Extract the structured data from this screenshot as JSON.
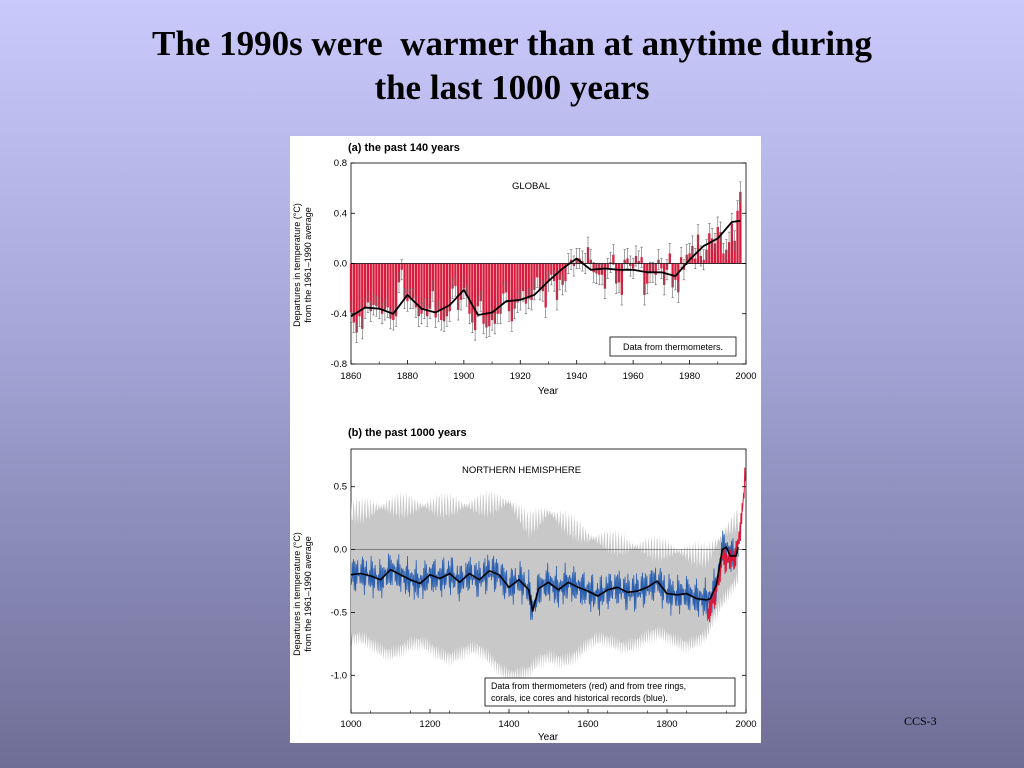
{
  "slide": {
    "title_line1": "The 1990s were  warmer than at anytime during",
    "title_line2": "the last 1000 years",
    "footer": "CCS-3",
    "background_top": "#c9c9fb",
    "background_bottom": "#6e6e96"
  },
  "chart_data": [
    {
      "type": "bar",
      "title": "(a) the past 140 years",
      "region_label": "GLOBAL",
      "xlabel": "Year",
      "ylabel": "Departures in temperature (°C) from the 1961–1990 average",
      "ylabel_lines": [
        "Departures in temperature (°C)",
        "from the 1961–1990 average"
      ],
      "xlim": [
        1860,
        2000
      ],
      "ylim": [
        -0.8,
        0.8
      ],
      "x_ticks": [
        1860,
        1880,
        1900,
        1920,
        1940,
        1960,
        1980,
        2000
      ],
      "y_ticks": [
        0.8,
        0.4,
        0.0,
        -0.4,
        -0.8
      ],
      "y_tick_labels": [
        "0.8",
        "0.4",
        "0.0",
        "-0.4",
        "-0.8"
      ],
      "legend_text": "Data from thermometers.",
      "legend_position": "bottom-right",
      "bar_color": "#d81b3c",
      "smooth_color": "#000000",
      "annual_anomalies": {
        "x": [
          1860,
          1861,
          1862,
          1863,
          1864,
          1865,
          1866,
          1867,
          1868,
          1869,
          1870,
          1871,
          1872,
          1873,
          1874,
          1875,
          1876,
          1877,
          1878,
          1879,
          1880,
          1881,
          1882,
          1883,
          1884,
          1885,
          1886,
          1887,
          1888,
          1889,
          1890,
          1891,
          1892,
          1893,
          1894,
          1895,
          1896,
          1897,
          1898,
          1899,
          1900,
          1901,
          1902,
          1903,
          1904,
          1905,
          1906,
          1907,
          1908,
          1909,
          1910,
          1911,
          1912,
          1913,
          1914,
          1915,
          1916,
          1917,
          1918,
          1919,
          1920,
          1921,
          1922,
          1923,
          1924,
          1925,
          1926,
          1927,
          1928,
          1929,
          1930,
          1931,
          1932,
          1933,
          1934,
          1935,
          1936,
          1937,
          1938,
          1939,
          1940,
          1941,
          1942,
          1943,
          1944,
          1945,
          1946,
          1947,
          1948,
          1949,
          1950,
          1951,
          1952,
          1953,
          1954,
          1955,
          1956,
          1957,
          1958,
          1959,
          1960,
          1961,
          1962,
          1963,
          1964,
          1965,
          1966,
          1967,
          1968,
          1969,
          1970,
          1971,
          1972,
          1973,
          1974,
          1975,
          1976,
          1977,
          1978,
          1979,
          1980,
          1981,
          1982,
          1983,
          1984,
          1985,
          1986,
          1987,
          1988,
          1989,
          1990,
          1991,
          1992,
          1993,
          1994,
          1995,
          1996,
          1997,
          1998
        ],
        "y": [
          -0.39,
          -0.47,
          -0.55,
          -0.42,
          -0.52,
          -0.36,
          -0.31,
          -0.38,
          -0.33,
          -0.34,
          -0.36,
          -0.4,
          -0.37,
          -0.35,
          -0.44,
          -0.45,
          -0.42,
          -0.15,
          -0.05,
          -0.28,
          -0.3,
          -0.28,
          -0.28,
          -0.35,
          -0.42,
          -0.4,
          -0.36,
          -0.42,
          -0.36,
          -0.22,
          -0.43,
          -0.38,
          -0.45,
          -0.46,
          -0.42,
          -0.38,
          -0.2,
          -0.18,
          -0.37,
          -0.29,
          -0.2,
          -0.26,
          -0.4,
          -0.47,
          -0.53,
          -0.34,
          -0.3,
          -0.48,
          -0.51,
          -0.5,
          -0.45,
          -0.48,
          -0.4,
          -0.4,
          -0.24,
          -0.23,
          -0.38,
          -0.46,
          -0.36,
          -0.31,
          -0.29,
          -0.22,
          -0.32,
          -0.28,
          -0.29,
          -0.21,
          -0.11,
          -0.21,
          -0.22,
          -0.35,
          -0.14,
          -0.09,
          -0.14,
          -0.29,
          -0.13,
          -0.17,
          -0.14,
          0.0,
          0.03,
          -0.02,
          0.04,
          0.04,
          0.02,
          0.0,
          0.13,
          0.03,
          -0.07,
          -0.08,
          -0.09,
          -0.09,
          -0.2,
          -0.04,
          0.01,
          0.07,
          -0.16,
          -0.15,
          -0.25,
          0.03,
          0.04,
          -0.02,
          -0.04,
          0.06,
          0.02,
          0.05,
          -0.25,
          -0.16,
          -0.07,
          -0.07,
          -0.09,
          0.03,
          -0.04,
          -0.17,
          -0.05,
          0.08,
          -0.19,
          -0.13,
          -0.23,
          0.05,
          -0.05,
          0.07,
          0.08,
          0.14,
          0.04,
          0.23,
          0.06,
          0.03,
          0.11,
          0.24,
          0.2,
          0.16,
          0.29,
          0.25,
          0.08,
          0.11,
          0.17,
          0.32,
          0.18,
          0.42,
          0.57
        ],
        "error_bar_halfwidth": 0.08
      },
      "smoothed_curve": {
        "x": [
          1860,
          1865,
          1870,
          1875,
          1880,
          1885,
          1890,
          1895,
          1900,
          1905,
          1910,
          1915,
          1920,
          1925,
          1930,
          1935,
          1940,
          1945,
          1950,
          1955,
          1960,
          1965,
          1970,
          1975,
          1980,
          1985,
          1990,
          1995,
          1998
        ],
        "y": [
          -0.42,
          -0.35,
          -0.36,
          -0.4,
          -0.25,
          -0.36,
          -0.39,
          -0.33,
          -0.21,
          -0.41,
          -0.39,
          -0.3,
          -0.29,
          -0.25,
          -0.14,
          -0.04,
          0.04,
          -0.05,
          -0.04,
          -0.05,
          -0.05,
          -0.07,
          -0.07,
          -0.1,
          0.03,
          0.14,
          0.2,
          0.33,
          0.34
        ]
      }
    },
    {
      "type": "line",
      "title": "(b) the past 1000 years",
      "region_label": "NORTHERN HEMISPHERE",
      "xlabel": "Year",
      "ylabel": "Departures in temperature (°C) from the 1961–1990 average",
      "ylabel_lines": [
        "Departures in temperature (°C)",
        "from the 1961–1990 average"
      ],
      "xlim": [
        1000,
        2000
      ],
      "ylim": [
        -1.3,
        0.8
      ],
      "x_ticks": [
        1000,
        1200,
        1400,
        1600,
        1800,
        2000
      ],
      "y_ticks": [
        0.5,
        0.0,
        -0.5,
        -1.0
      ],
      "y_tick_labels": [
        "0.5",
        "0.0",
        "-0.5",
        "-1.0"
      ],
      "legend_text": [
        "Data from thermometers (red) and from tree rings,",
        "corals, ice cores and historical records (blue)."
      ],
      "legend_position": "bottom-right",
      "proxy_color": "#2b5fb0",
      "instrumental_color": "#d81b3c",
      "uncertainty_color": "#c8c8c8",
      "smoothed_reconstruction": {
        "x": [
          1000,
          1025,
          1050,
          1075,
          1100,
          1125,
          1150,
          1175,
          1200,
          1225,
          1250,
          1275,
          1300,
          1325,
          1350,
          1375,
          1400,
          1425,
          1450,
          1460,
          1475,
          1500,
          1525,
          1550,
          1575,
          1600,
          1625,
          1650,
          1675,
          1700,
          1725,
          1750,
          1775,
          1800,
          1825,
          1850,
          1875,
          1900,
          1910,
          1925,
          1940,
          1950,
          1960,
          1975,
          1980
        ],
        "y": [
          -0.2,
          -0.19,
          -0.21,
          -0.24,
          -0.16,
          -0.2,
          -0.24,
          -0.27,
          -0.2,
          -0.23,
          -0.19,
          -0.26,
          -0.19,
          -0.24,
          -0.17,
          -0.2,
          -0.3,
          -0.24,
          -0.32,
          -0.49,
          -0.31,
          -0.26,
          -0.32,
          -0.26,
          -0.3,
          -0.33,
          -0.37,
          -0.32,
          -0.3,
          -0.34,
          -0.33,
          -0.3,
          -0.25,
          -0.35,
          -0.36,
          -0.35,
          -0.39,
          -0.4,
          -0.39,
          -0.28,
          0.0,
          0.02,
          -0.05,
          -0.05,
          0.02
        ]
      },
      "uncertainty_band": {
        "x": [
          1000,
          1100,
          1200,
          1300,
          1400,
          1450,
          1500,
          1600,
          1700,
          1800,
          1900,
          1950,
          1980
        ],
        "lower": [
          -0.75,
          -0.78,
          -0.8,
          -0.82,
          -0.95,
          -1.0,
          -0.88,
          -0.78,
          -0.72,
          -0.72,
          -0.7,
          -0.4,
          -0.2
        ],
        "upper": [
          0.3,
          0.35,
          0.35,
          0.35,
          0.38,
          0.2,
          0.3,
          0.1,
          0.03,
          0.0,
          -0.05,
          0.15,
          0.25
        ]
      },
      "instrumental_record": {
        "x": [
          1902,
          1910,
          1920,
          1930,
          1940,
          1950,
          1960,
          1970,
          1980,
          1985,
          1990,
          1995,
          1998
        ],
        "y": [
          -0.55,
          -0.45,
          -0.38,
          -0.25,
          -0.05,
          -0.1,
          -0.05,
          -0.08,
          0.05,
          0.15,
          0.3,
          0.45,
          0.65
        ]
      }
    }
  ]
}
